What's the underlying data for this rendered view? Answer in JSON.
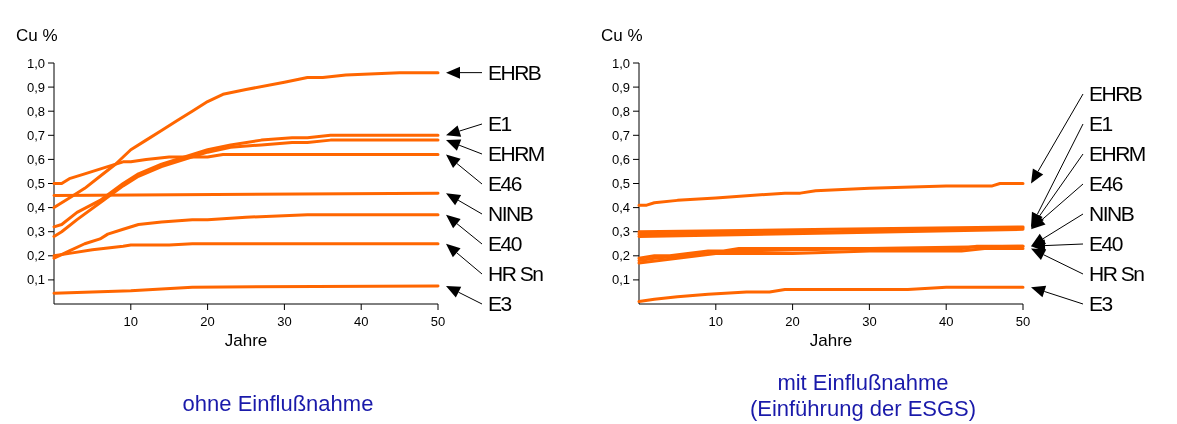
{
  "chart_data": [
    {
      "type": "line",
      "title": "ohne Einflußnahme",
      "xlabel": "Jahre",
      "ylabel": "Cu %",
      "xlim": [
        0,
        50
      ],
      "ylim": [
        0,
        1.0
      ],
      "xticks": [
        10,
        20,
        30,
        40,
        50
      ],
      "yticks": [
        {
          "value": 0.1,
          "label": "0,1"
        },
        {
          "value": 0.2,
          "label": "0,2"
        },
        {
          "value": 0.3,
          "label": "0,3"
        },
        {
          "value": 0.4,
          "label": "0,4"
        },
        {
          "value": 0.5,
          "label": "0,5"
        },
        {
          "value": 0.6,
          "label": "0,6"
        },
        {
          "value": 0.7,
          "label": "0,7"
        },
        {
          "value": 0.8,
          "label": "0,8"
        },
        {
          "value": 0.9,
          "label": "0,9"
        },
        {
          "value": 1.0,
          "label": "1,0"
        }
      ],
      "series": [
        {
          "name": "EHRB",
          "color": "#ff6600",
          "x": [
            0,
            2,
            4,
            6,
            8,
            10,
            12,
            14,
            16,
            18,
            20,
            22,
            25,
            30,
            33,
            35,
            38,
            45,
            50
          ],
          "values": [
            0.4,
            0.44,
            0.48,
            0.53,
            0.58,
            0.64,
            0.68,
            0.72,
            0.76,
            0.8,
            0.84,
            0.87,
            0.89,
            0.92,
            0.94,
            0.94,
            0.95,
            0.96,
            0.96
          ]
        },
        {
          "name": "E1",
          "color": "#ff6600",
          "x": [
            0,
            1,
            3,
            6,
            9,
            11,
            14,
            17,
            20,
            23,
            27,
            31,
            33,
            36,
            42,
            45,
            50
          ],
          "values": [
            0.32,
            0.33,
            0.38,
            0.43,
            0.5,
            0.54,
            0.58,
            0.61,
            0.64,
            0.66,
            0.68,
            0.69,
            0.69,
            0.7,
            0.7,
            0.7,
            0.7
          ]
        },
        {
          "name": "EHRM",
          "color": "#ff6600",
          "x": [
            0,
            1,
            3,
            6,
            9,
            11,
            14,
            17,
            20,
            23,
            27,
            31,
            33,
            36,
            42,
            45,
            50
          ],
          "values": [
            0.28,
            0.3,
            0.35,
            0.42,
            0.49,
            0.53,
            0.57,
            0.6,
            0.63,
            0.65,
            0.66,
            0.67,
            0.67,
            0.68,
            0.68,
            0.68,
            0.68
          ]
        },
        {
          "name": "E46",
          "color": "#ff6600",
          "x": [
            0,
            1,
            2,
            4,
            7,
            9,
            10,
            12,
            15,
            20,
            22,
            50
          ],
          "values": [
            0.5,
            0.5,
            0.52,
            0.54,
            0.57,
            0.59,
            0.59,
            0.6,
            0.61,
            0.61,
            0.62,
            0.62
          ]
        },
        {
          "name": "NINB",
          "color": "#ff6600",
          "x": [
            0,
            50
          ],
          "values": [
            0.45,
            0.46
          ]
        },
        {
          "name": "E40",
          "color": "#ff6600",
          "x": [
            0,
            2,
            4,
            6,
            7,
            9,
            11,
            14,
            18,
            20,
            25,
            33,
            50
          ],
          "values": [
            0.19,
            0.22,
            0.25,
            0.27,
            0.29,
            0.31,
            0.33,
            0.34,
            0.35,
            0.35,
            0.36,
            0.37,
            0.37
          ]
        },
        {
          "name": "HR Sn",
          "color": "#ff6600",
          "x": [
            0,
            2,
            5,
            9,
            10,
            15,
            18,
            50
          ],
          "values": [
            0.2,
            0.21,
            0.225,
            0.24,
            0.245,
            0.245,
            0.25,
            0.25
          ]
        },
        {
          "name": "E3",
          "color": "#ff6600",
          "x": [
            0,
            10,
            18,
            50
          ],
          "values": [
            0.045,
            0.055,
            0.07,
            0.075
          ]
        }
      ]
    },
    {
      "type": "line",
      "title": "mit Einflußnahme",
      "subtitle": "(Einführung der ESGS)",
      "xlabel": "Jahre",
      "ylabel": "Cu %",
      "xlim": [
        0,
        50
      ],
      "ylim": [
        0,
        1.0
      ],
      "xticks": [
        10,
        20,
        30,
        40,
        50
      ],
      "yticks": [
        {
          "value": 0.1,
          "label": "0,1"
        },
        {
          "value": 0.2,
          "label": "0,2"
        },
        {
          "value": 0.3,
          "label": "0,3"
        },
        {
          "value": 0.4,
          "label": "0,4"
        },
        {
          "value": 0.5,
          "label": "0,5"
        },
        {
          "value": 0.6,
          "label": "0,6"
        },
        {
          "value": 0.7,
          "label": "0,7"
        },
        {
          "value": 0.8,
          "label": "0,8"
        },
        {
          "value": 0.9,
          "label": "0,9"
        },
        {
          "value": 1.0,
          "label": "1,0"
        }
      ],
      "series": [
        {
          "name": "EHRB",
          "color": "#ff6600",
          "x": [
            0,
            1,
            2,
            5,
            10,
            19,
            21,
            23,
            30,
            40,
            46,
            47,
            50
          ],
          "values": [
            0.41,
            0.41,
            0.42,
            0.43,
            0.44,
            0.46,
            0.46,
            0.47,
            0.48,
            0.49,
            0.49,
            0.5,
            0.5
          ]
        },
        {
          "name": "E1",
          "color": "#ff6600",
          "x": [
            0,
            25,
            50
          ],
          "values": [
            0.3,
            0.31,
            0.32
          ]
        },
        {
          "name": "EHRM",
          "color": "#ff6600",
          "x": [
            0,
            25,
            50
          ],
          "values": [
            0.29,
            0.3,
            0.315
          ]
        },
        {
          "name": "E46",
          "color": "#ff6600",
          "x": [
            0,
            25,
            50
          ],
          "values": [
            0.28,
            0.295,
            0.31
          ]
        },
        {
          "name": "NINB",
          "color": "#ff6600",
          "x": [
            0,
            2,
            4,
            9,
            11,
            13,
            42,
            44,
            50
          ],
          "values": [
            0.19,
            0.2,
            0.2,
            0.22,
            0.22,
            0.23,
            0.23,
            0.24,
            0.24
          ]
        },
        {
          "name": "E40",
          "color": "#ff6600",
          "x": [
            0,
            2,
            9,
            13,
            30,
            50
          ],
          "values": [
            0.18,
            0.19,
            0.21,
            0.22,
            0.23,
            0.24
          ]
        },
        {
          "name": "HR Sn",
          "color": "#ff6600",
          "x": [
            0,
            5,
            10,
            20,
            30,
            42,
            45,
            50
          ],
          "values": [
            0.17,
            0.19,
            0.21,
            0.21,
            0.22,
            0.22,
            0.23,
            0.23
          ]
        },
        {
          "name": "E3",
          "color": "#ff6600",
          "x": [
            0,
            2,
            5,
            9,
            14,
            17,
            19,
            35,
            40,
            50
          ],
          "values": [
            0.01,
            0.02,
            0.03,
            0.04,
            0.05,
            0.05,
            0.06,
            0.06,
            0.07,
            0.07
          ]
        }
      ]
    }
  ]
}
